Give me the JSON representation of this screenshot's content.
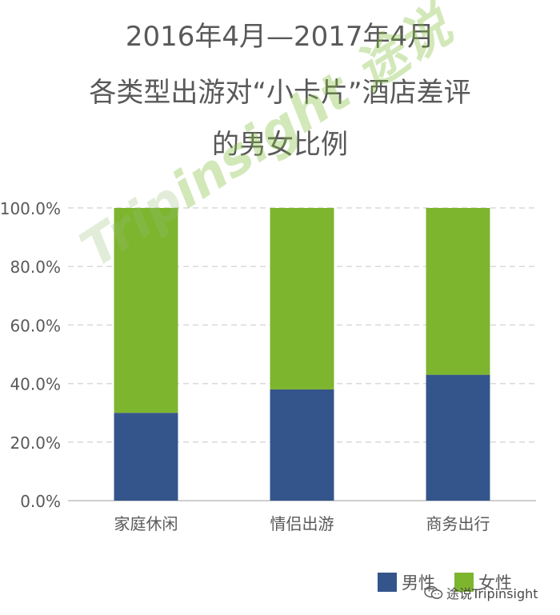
{
  "title_lines": [
    "2016年4月—2017年4月",
    "各类型出游对“小卡片”酒店差评",
    "的男女比例"
  ],
  "watermark": {
    "latin_prefix": "Trip",
    "latin_suffix": "insight",
    "chinese": "途说"
  },
  "footer": {
    "account": "途说Tripinsight"
  },
  "colors": {
    "male": "#34558b",
    "female": "#7db52f",
    "grid": "#d9d9d9",
    "text": "#595959"
  },
  "chart_data": {
    "type": "bar",
    "stacked": true,
    "categories": [
      "家庭休闲",
      "情侣出游",
      "商务出行"
    ],
    "series": [
      {
        "name": "男性",
        "values": [
          30.0,
          38.0,
          43.0
        ]
      },
      {
        "name": "女性",
        "values": [
          70.0,
          62.0,
          57.0
        ]
      }
    ],
    "yticks": [
      "0.0%",
      "20.0%",
      "40.0%",
      "60.0%",
      "80.0%",
      "100.0%"
    ],
    "ylim": [
      0,
      100
    ],
    "grid": true,
    "legend_position": "bottom-right"
  }
}
